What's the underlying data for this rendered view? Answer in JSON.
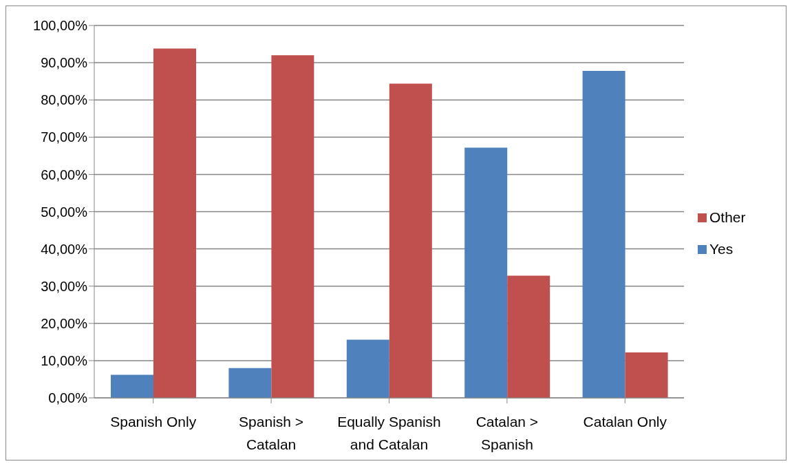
{
  "chart_data": {
    "type": "bar",
    "categories": [
      "Spanish Only",
      "Spanish > Catalan",
      "Equally Spanish and Catalan",
      "Catalan > Spanish",
      "Catalan Only"
    ],
    "series": [
      {
        "name": "Yes",
        "color": "#4f81bd",
        "values": [
          6.2,
          8.0,
          15.6,
          67.2,
          87.8
        ]
      },
      {
        "name": "Other",
        "color": "#c0504d",
        "values": [
          93.8,
          92.0,
          84.4,
          32.8,
          12.2
        ]
      }
    ],
    "ylim": [
      0,
      100
    ],
    "yticks": [
      {
        "value": 0,
        "label": "0,00%"
      },
      {
        "value": 10,
        "label": "10,00%"
      },
      {
        "value": 20,
        "label": "20,00%"
      },
      {
        "value": 30,
        "label": "30,00%"
      },
      {
        "value": 40,
        "label": "40,00%"
      },
      {
        "value": 50,
        "label": "50,00%"
      },
      {
        "value": 60,
        "label": "60,00%"
      },
      {
        "value": 70,
        "label": "70,00%"
      },
      {
        "value": 80,
        "label": "80,00%"
      },
      {
        "value": 90,
        "label": "90,00%"
      },
      {
        "value": 100,
        "label": "100,00%"
      }
    ],
    "grid": "y",
    "legend": "right"
  }
}
